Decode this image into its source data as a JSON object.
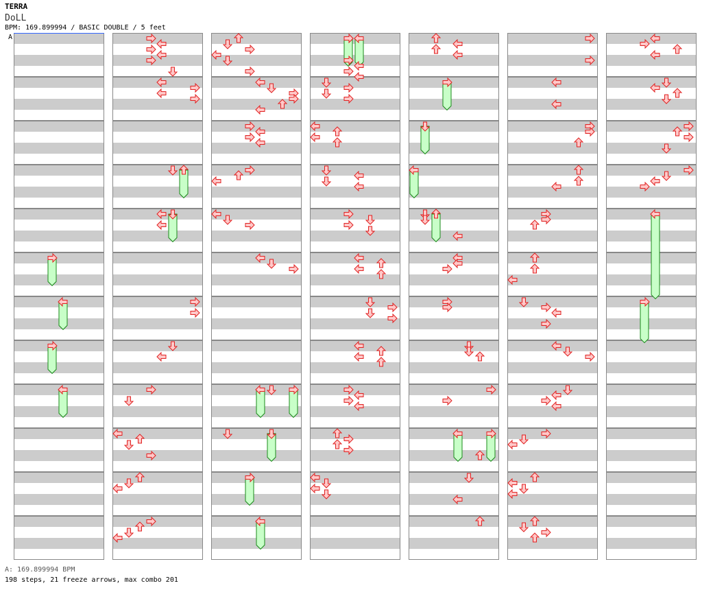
{
  "header": {
    "artist": "TERRA",
    "title": "DoLL",
    "info": "BPM: 169.899994 / BASIC DOUBLE / 5 feet"
  },
  "bpm_marker": {
    "label": "A"
  },
  "footer": {
    "bpm_legend": "A: 169.899994 BPM",
    "stats": "198 steps, 21 freeze arrows, max combo 201"
  },
  "colors": {
    "stripe": "#cccccc",
    "border": "#888888",
    "arrow_fill": "#ffc8c8",
    "arrow_stroke": "#e02020",
    "freeze_fill": "#c8ffc8",
    "freeze_stroke": "#1a8a1a",
    "bpm_line": "#3366ff"
  },
  "lane_order": [
    "left",
    "down",
    "up",
    "right",
    "left",
    "down",
    "up",
    "right"
  ],
  "measures_per_column": 12,
  "column_count": 7,
  "arrows": [
    [
      1,
      0,
      3
    ],
    [
      1,
      0.125,
      4
    ],
    [
      1,
      0.25,
      3
    ],
    [
      1,
      0.375,
      4
    ],
    [
      1,
      0.5,
      3
    ],
    [
      1,
      0.75,
      5
    ],
    [
      1,
      1,
      4
    ],
    [
      1,
      1.125,
      7
    ],
    [
      1,
      1.25,
      4
    ],
    [
      1,
      1.375,
      7
    ],
    [
      1,
      3,
      5
    ],
    [
      1,
      4,
      4
    ],
    [
      1,
      4.25,
      4
    ],
    [
      1,
      6,
      7
    ],
    [
      1,
      6.25,
      7
    ],
    [
      1,
      7,
      5
    ],
    [
      1,
      7.25,
      4
    ],
    [
      1,
      8,
      3
    ],
    [
      1,
      8.25,
      1
    ],
    [
      1,
      9,
      0
    ],
    [
      1,
      9.125,
      2
    ],
    [
      1,
      9.25,
      1
    ],
    [
      1,
      9.5,
      3
    ],
    [
      1,
      10,
      2
    ],
    [
      1,
      10.125,
      1
    ],
    [
      1,
      10.25,
      0
    ],
    [
      1,
      11,
      3
    ],
    [
      1,
      11.125,
      2
    ],
    [
      1,
      11.25,
      1
    ],
    [
      1,
      11.375,
      0
    ],
    [
      2,
      0,
      2
    ],
    [
      2,
      0.125,
      1
    ],
    [
      2,
      0.25,
      3
    ],
    [
      2,
      0.375,
      0
    ],
    [
      2,
      0.5,
      1
    ],
    [
      2,
      0.75,
      3
    ],
    [
      2,
      1,
      4
    ],
    [
      2,
      1.125,
      5
    ],
    [
      2,
      1.25,
      7
    ],
    [
      2,
      1.375,
      7
    ],
    [
      2,
      1.5,
      6
    ],
    [
      2,
      1.625,
      4
    ],
    [
      2,
      2,
      3
    ],
    [
      2,
      2.125,
      4
    ],
    [
      2,
      2.25,
      3
    ],
    [
      2,
      2.375,
      4
    ],
    [
      2,
      3,
      3
    ],
    [
      2,
      3.125,
      2
    ],
    [
      2,
      3.25,
      0
    ],
    [
      2,
      4,
      0
    ],
    [
      2,
      4.125,
      1
    ],
    [
      2,
      4.25,
      3
    ],
    [
      2,
      5,
      4
    ],
    [
      2,
      5.125,
      5
    ],
    [
      2,
      5.25,
      7
    ],
    [
      2,
      8,
      5
    ],
    [
      2,
      9,
      1
    ],
    [
      2,
      10,
      3
    ],
    [
      2,
      11,
      4
    ],
    [
      3,
      0,
      3
    ],
    [
      3,
      0.5,
      3
    ],
    [
      3,
      0.625,
      4
    ],
    [
      3,
      0.75,
      3
    ],
    [
      3,
      0.875,
      4
    ],
    [
      3,
      1,
      1
    ],
    [
      3,
      1.125,
      3
    ],
    [
      3,
      1.25,
      1
    ],
    [
      3,
      1.375,
      3
    ],
    [
      3,
      2,
      0
    ],
    [
      3,
      2.125,
      2
    ],
    [
      3,
      2.25,
      0
    ],
    [
      3,
      2.375,
      2
    ],
    [
      3,
      3,
      1
    ],
    [
      3,
      3.125,
      4
    ],
    [
      3,
      3.25,
      1
    ],
    [
      3,
      3.375,
      4
    ],
    [
      3,
      4,
      3
    ],
    [
      3,
      4.125,
      5
    ],
    [
      3,
      4.25,
      3
    ],
    [
      3,
      4.375,
      5
    ],
    [
      3,
      5,
      4
    ],
    [
      3,
      5.125,
      6
    ],
    [
      3,
      5.25,
      4
    ],
    [
      3,
      5.375,
      6
    ],
    [
      3,
      6,
      5
    ],
    [
      3,
      6.125,
      7
    ],
    [
      3,
      6.25,
      5
    ],
    [
      3,
      6.375,
      7
    ],
    [
      3,
      7,
      4
    ],
    [
      3,
      7.125,
      6
    ],
    [
      3,
      7.25,
      4
    ],
    [
      3,
      7.375,
      6
    ],
    [
      3,
      8,
      3
    ],
    [
      3,
      8.125,
      4
    ],
    [
      3,
      8.25,
      3
    ],
    [
      3,
      8.375,
      4
    ],
    [
      3,
      9,
      2
    ],
    [
      3,
      9.125,
      3
    ],
    [
      3,
      9.25,
      2
    ],
    [
      3,
      9.375,
      3
    ],
    [
      3,
      10,
      0
    ],
    [
      3,
      10.125,
      1
    ],
    [
      3,
      10.25,
      0
    ],
    [
      3,
      10.375,
      1
    ],
    [
      4,
      0,
      2
    ],
    [
      4,
      0.125,
      4
    ],
    [
      4,
      0.25,
      2
    ],
    [
      4,
      0.375,
      4
    ],
    [
      4,
      4,
      1
    ],
    [
      4,
      4.125,
      1
    ],
    [
      4,
      4.5,
      4
    ],
    [
      4,
      5,
      4
    ],
    [
      4,
      5.125,
      4
    ],
    [
      4,
      5.25,
      3
    ],
    [
      4,
      6,
      3
    ],
    [
      4,
      6.125,
      3
    ],
    [
      4,
      7,
      5
    ],
    [
      4,
      7.125,
      5
    ],
    [
      4,
      7.25,
      6
    ],
    [
      4,
      8,
      7
    ],
    [
      4,
      8.25,
      3
    ],
    [
      4,
      9.5,
      6
    ],
    [
      4,
      10,
      5
    ],
    [
      4,
      10.5,
      4
    ],
    [
      4,
      11,
      6
    ],
    [
      5,
      0,
      7
    ],
    [
      5,
      0.5,
      7
    ],
    [
      5,
      1,
      4
    ],
    [
      5,
      1.5,
      4
    ],
    [
      5,
      2,
      7
    ],
    [
      5,
      2.125,
      7
    ],
    [
      5,
      2.375,
      6
    ],
    [
      5,
      3,
      6
    ],
    [
      5,
      3.25,
      6
    ],
    [
      5,
      3.375,
      4
    ],
    [
      5,
      4,
      3
    ],
    [
      5,
      4.125,
      3
    ],
    [
      5,
      4.25,
      2
    ],
    [
      5,
      5,
      2
    ],
    [
      5,
      5.25,
      2
    ],
    [
      5,
      5.5,
      0
    ],
    [
      5,
      6,
      1
    ],
    [
      5,
      6.125,
      3
    ],
    [
      5,
      6.25,
      4
    ],
    [
      5,
      6.5,
      3
    ],
    [
      5,
      7,
      4
    ],
    [
      5,
      7.125,
      5
    ],
    [
      5,
      7.25,
      7
    ],
    [
      5,
      8,
      5
    ],
    [
      5,
      8.125,
      4
    ],
    [
      5,
      8.25,
      3
    ],
    [
      5,
      8.375,
      4
    ],
    [
      5,
      9,
      3
    ],
    [
      5,
      9.125,
      1
    ],
    [
      5,
      9.25,
      0
    ],
    [
      5,
      10,
      2
    ],
    [
      5,
      10.125,
      0
    ],
    [
      5,
      10.25,
      1
    ],
    [
      5,
      10.375,
      0
    ],
    [
      5,
      11,
      2
    ],
    [
      5,
      11.125,
      1
    ],
    [
      5,
      11.25,
      3
    ],
    [
      5,
      11.375,
      2
    ],
    [
      6,
      0,
      4
    ],
    [
      6,
      0.125,
      3
    ],
    [
      6,
      0.25,
      6
    ],
    [
      6,
      0.375,
      4
    ],
    [
      6,
      1,
      5
    ],
    [
      6,
      1.125,
      4
    ],
    [
      6,
      1.25,
      6
    ],
    [
      6,
      1.375,
      5
    ],
    [
      6,
      2,
      7
    ],
    [
      6,
      2.125,
      6
    ],
    [
      6,
      2.25,
      7
    ],
    [
      6,
      2.5,
      5
    ],
    [
      6,
      3,
      7
    ],
    [
      6,
      3.125,
      5
    ],
    [
      6,
      3.25,
      4
    ],
    [
      6,
      3.375,
      3
    ]
  ],
  "freezes": [
    [
      0,
      5,
      3,
      0.6
    ],
    [
      0,
      6,
      4,
      0.6
    ],
    [
      0,
      7,
      3,
      0.6
    ],
    [
      0,
      8,
      4,
      0.6
    ],
    [
      1,
      3,
      6,
      0.6
    ],
    [
      1,
      4,
      5,
      0.6
    ],
    [
      2,
      8,
      4,
      0.6
    ],
    [
      2,
      8,
      7,
      0.6
    ],
    [
      2,
      9,
      5,
      0.6
    ],
    [
      2,
      10,
      3,
      0.6
    ],
    [
      2,
      11,
      4,
      0.6
    ],
    [
      3,
      0,
      3,
      0.6
    ],
    [
      3,
      0,
      4,
      0.6
    ],
    [
      4,
      1,
      3,
      0.6
    ],
    [
      4,
      2,
      1,
      0.6
    ],
    [
      4,
      3,
      0,
      0.6
    ],
    [
      4,
      4,
      2,
      0.6
    ],
    [
      4,
      9,
      4,
      0.6
    ],
    [
      4,
      9,
      7,
      0.6
    ],
    [
      6,
      4,
      4,
      1.9
    ],
    [
      6,
      6,
      3,
      0.9
    ]
  ]
}
